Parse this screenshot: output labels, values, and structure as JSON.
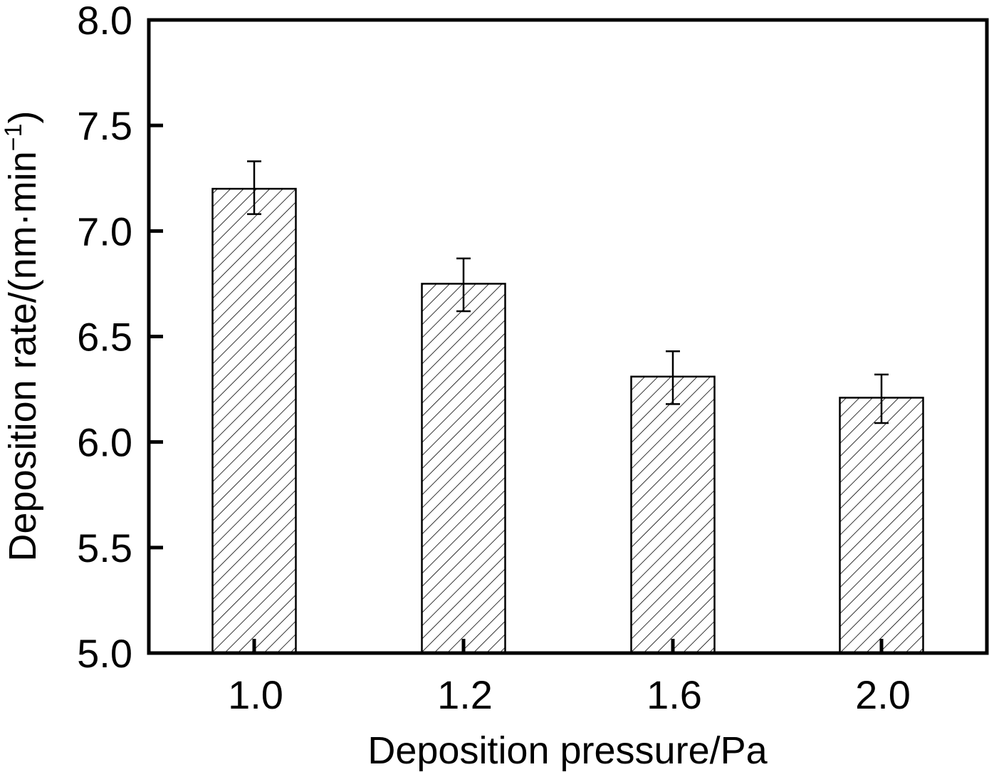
{
  "chart_data": {
    "type": "bar",
    "xlabel": "Deposition pressure/Pa",
    "ylabel": {
      "main": "Deposition rate/(nm·min",
      "superscript": "−1",
      "close": ")"
    },
    "categories": [
      "1.0",
      "1.2",
      "1.6",
      "2.0"
    ],
    "values": [
      7.2,
      6.75,
      6.31,
      6.21
    ],
    "error_high": [
      7.33,
      6.87,
      6.43,
      6.32
    ],
    "error_low": [
      7.08,
      6.62,
      6.18,
      6.09
    ],
    "ylim": [
      5.0,
      8.0
    ],
    "yticks": [
      "5.0",
      "5.5",
      "6.0",
      "6.5",
      "7.0",
      "7.5",
      "8.0"
    ],
    "bar_fill": "hatched-diagonal",
    "grid": false,
    "legend": "none",
    "colors": {
      "bar_stroke": "#000000",
      "hatch": "#000000",
      "background": "#ffffff"
    }
  }
}
